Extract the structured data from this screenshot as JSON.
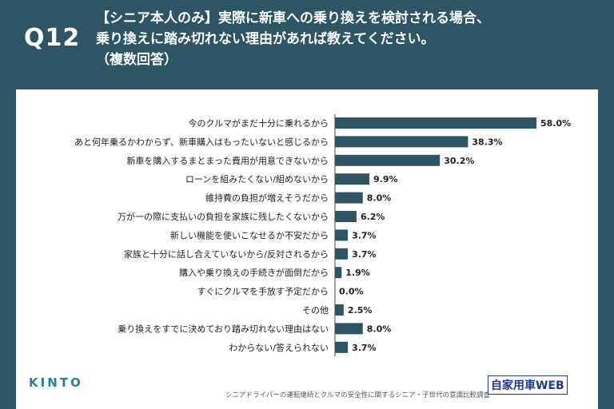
{
  "header": {
    "question_number": "Q12",
    "question_line1": "【シニア本人のみ】実際に新車への乗り換えを検討される場合、",
    "question_line2": "乗り換えに踏み切れない理由があれば教えてください。",
    "question_line3": "（複数回答）"
  },
  "footer": {
    "logo": "KINTO",
    "source": "シニアドライバーの運転継続とクルマの安全性に関するシニア・子世代の意識比較調査",
    "watermark": "自家用車WEB"
  },
  "colors": {
    "header_bg": "#2d5563",
    "bar": "#2d5563",
    "axis": "#444444"
  },
  "chart_data": {
    "type": "bar",
    "orientation": "horizontal",
    "categories": [
      "今のクルマがまだ十分に乗れるから",
      "あと何年乗るかわからず、新車購入はもったいないと感じるから",
      "新車を購入するまとまった費用が用意できないから",
      "ローンを組みたくない/組めないから",
      "維持費の負担が増えそうだから",
      "万が一の際に支払いの負担を家族に残したくないから",
      "新しい機能を使いこなせるか不安だから",
      "家族と十分に話し合えていないから/反対されるから",
      "購入や乗り換えの手続きが面倒だから",
      "すぐにクルマを手放す予定だから",
      "その他",
      "乗り換えをすでに決めており踏み切れない理由はない",
      "わからない/答えられない"
    ],
    "values": [
      58.0,
      38.3,
      30.2,
      9.9,
      8.0,
      6.2,
      3.7,
      3.7,
      1.9,
      0.0,
      2.5,
      8.0,
      3.7
    ],
    "value_labels": [
      "58.0%",
      "38.3%",
      "30.2%",
      "9.9%",
      "8.0%",
      "6.2%",
      "3.7%",
      "3.7%",
      "1.9%",
      "0.0%",
      "2.5%",
      "8.0%",
      "3.7%"
    ],
    "xlim": [
      0,
      58.0
    ],
    "grid": false,
    "legend": "none"
  }
}
